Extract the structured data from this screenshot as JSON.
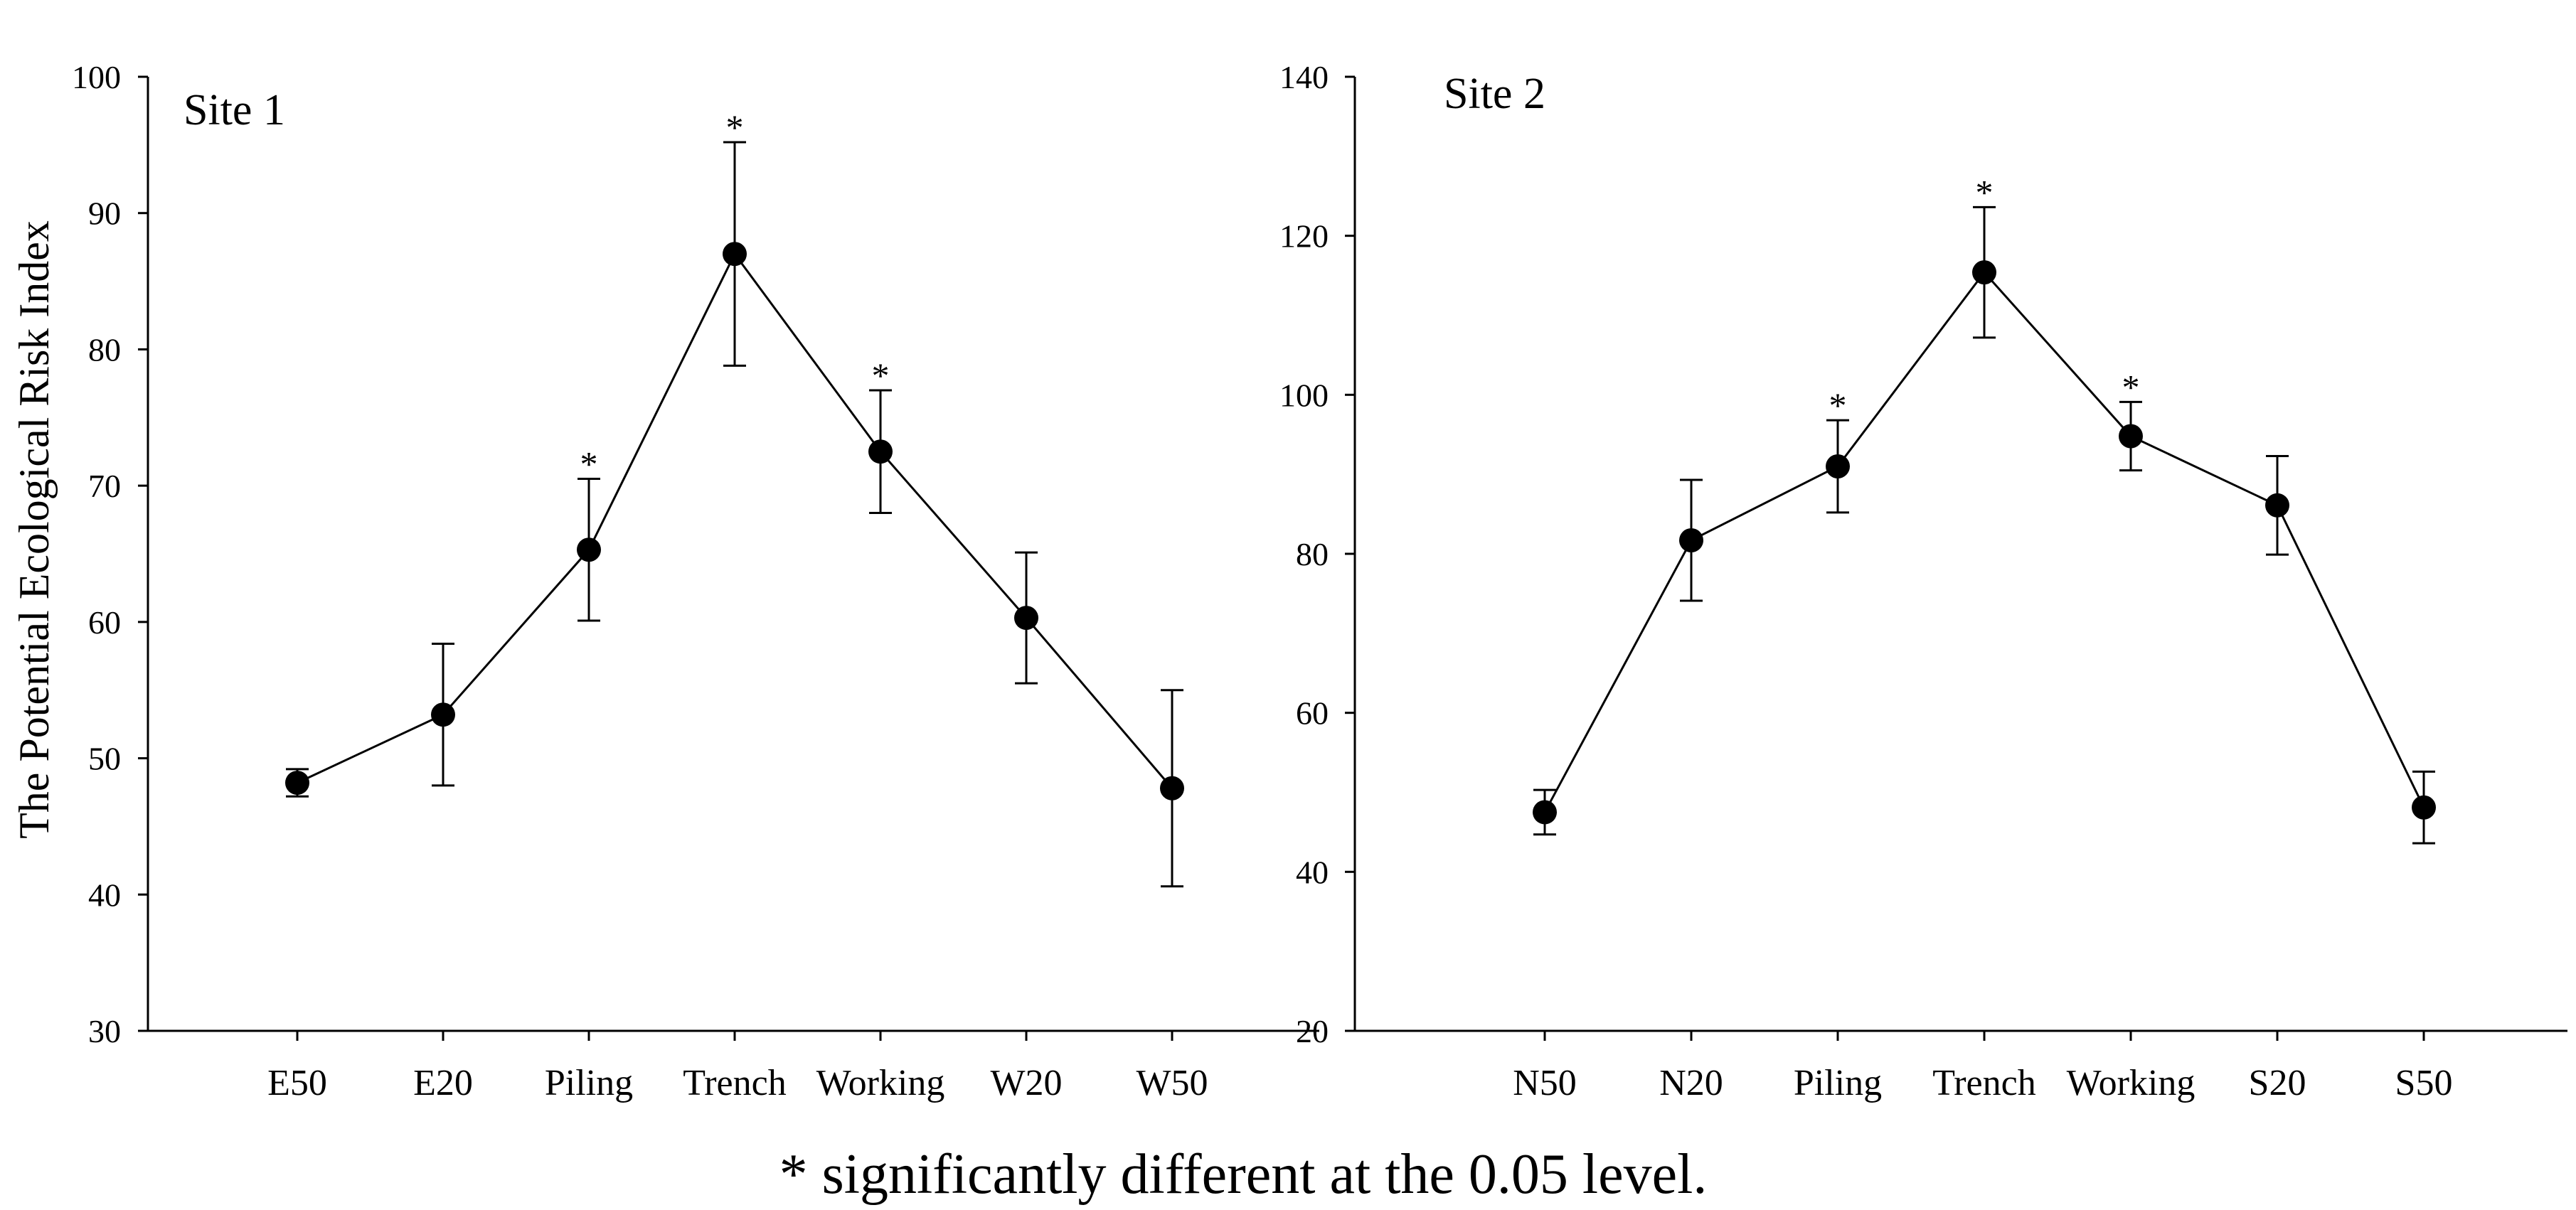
{
  "y_axis_label": "The Potential Ecological Risk Index",
  "footnote": "* significantly different at the 0.05 level.",
  "chart_data": [
    {
      "type": "line",
      "title": "Site 1",
      "xlabel": "",
      "ylabel": "The Potential Ecological Risk Index",
      "ylim": [
        30,
        100
      ],
      "yticks": [
        30,
        40,
        50,
        60,
        70,
        80,
        90,
        100
      ],
      "categories": [
        "E50",
        "E20",
        "Piling",
        "Trench",
        "Working",
        "W20",
        "W50"
      ],
      "series": [
        {
          "name": "Site 1",
          "values": [
            48.2,
            53.2,
            65.3,
            87.0,
            72.5,
            60.3,
            47.8
          ],
          "error": [
            1.0,
            5.2,
            5.2,
            8.2,
            4.5,
            4.8,
            7.2
          ],
          "significant": [
            false,
            false,
            true,
            true,
            true,
            false,
            false
          ]
        }
      ]
    },
    {
      "type": "line",
      "title": "Site 2",
      "xlabel": "",
      "ylabel": "",
      "ylim": [
        20,
        140
      ],
      "yticks": [
        20,
        40,
        60,
        80,
        100,
        120,
        140
      ],
      "categories": [
        "N50",
        "N20",
        "Piling",
        "Trench",
        "Working",
        "S20",
        "S50"
      ],
      "series": [
        {
          "name": "Site 2",
          "values": [
            47.5,
            81.7,
            91.0,
            115.4,
            94.8,
            86.1,
            48.1
          ],
          "error": [
            2.8,
            7.6,
            5.8,
            8.2,
            4.3,
            6.2,
            4.5
          ],
          "significant": [
            false,
            false,
            true,
            true,
            true,
            false,
            false
          ]
        }
      ]
    }
  ]
}
